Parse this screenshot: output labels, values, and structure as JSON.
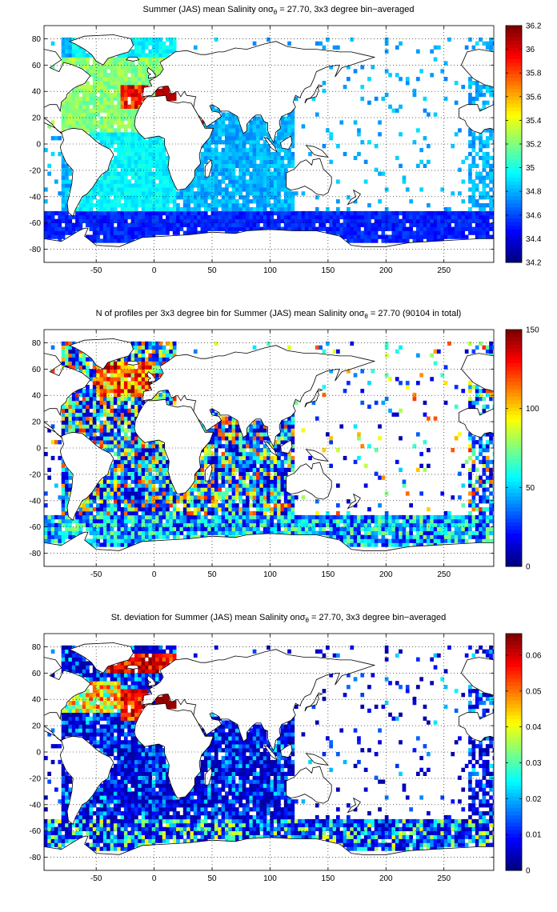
{
  "panels": [
    {
      "title_pre": "Summer (JAS) mean Salinity on",
      "title_sym": "σ",
      "title_sub": "θ",
      "title_post": " = 27.70, 3x3 degree bin−averaged",
      "colorbar": {
        "ticks": [
          "34.2",
          "34.4",
          "34.6",
          "34.8",
          "35",
          "35.2",
          "35.4",
          "35.6",
          "35.8",
          "36",
          "36.2"
        ],
        "range": [
          34.2,
          36.2
        ]
      }
    },
    {
      "title_pre": "N of profiles per 3x3 degree bin for Summer (JAS) mean Salinity on",
      "title_sym": "σ",
      "title_sub": "θ",
      "title_post": " = 27.70 (90104 in total)",
      "colorbar": {
        "ticks": [
          "0",
          "50",
          "100",
          "150"
        ],
        "range": [
          0,
          150
        ]
      }
    },
    {
      "title_pre": "St. deviation for Summer (JAS) mean Salinity on",
      "title_sym": "σ",
      "title_sub": "θ",
      "title_post": " = 27.70, 3x3 degree bin−averaged",
      "colorbar": {
        "ticks": [
          "0",
          "0.01",
          "0.02",
          "0.03",
          "0.04",
          "0.05",
          "0.06"
        ],
        "range": [
          0,
          0.066
        ]
      }
    }
  ],
  "map_axes": {
    "x_ticks": [
      "-50",
      "0",
      "50",
      "100",
      "150",
      "200",
      "250"
    ],
    "y_ticks": [
      "80",
      "60",
      "40",
      "20",
      "0",
      "-20",
      "-40",
      "-60",
      "-80"
    ],
    "xlim": [
      -95,
      293
    ],
    "ylim": [
      -90,
      90
    ],
    "grid": true,
    "colormap": "jet"
  },
  "colors": {
    "land": "#ffffff",
    "coastline": "#000000",
    "grid": "#000000"
  }
}
